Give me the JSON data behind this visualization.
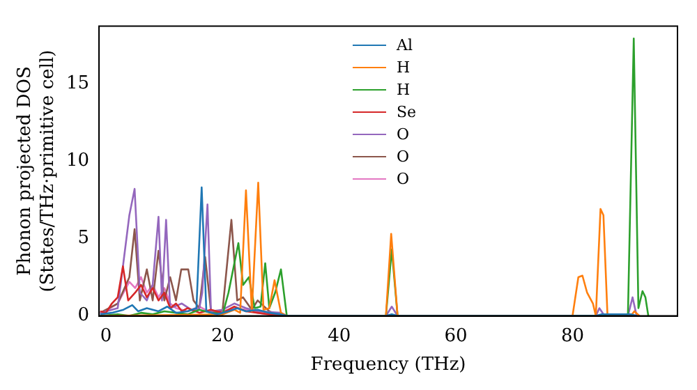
{
  "chart_data": {
    "type": "line",
    "xlabel": "Frequency (THz)",
    "ylabel": "Phonon projected DOS\n(States/THz·primitive cell)",
    "xlim": [
      -1.2,
      98
    ],
    "ylim": [
      0,
      18.7
    ],
    "xticks": [
      0,
      20,
      40,
      60,
      80
    ],
    "yticks": [
      0,
      5,
      10,
      15
    ],
    "grid": false,
    "legend": "top",
    "marker": "none",
    "line_style": "solid",
    "series": [
      {
        "name": "Al",
        "color": "#1f77b4",
        "x": [
          -1,
          1,
          3,
          4.5,
          5.5,
          7,
          9,
          10.5,
          12,
          14,
          15.5,
          16.4,
          17.2,
          19,
          21,
          22.5,
          24,
          26,
          28,
          30,
          31,
          48,
          49,
          50,
          84,
          85,
          90,
          91
        ],
        "values": [
          0.1,
          0.2,
          0.4,
          0.7,
          0.3,
          0.5,
          0.3,
          0.6,
          0.2,
          0.3,
          0.5,
          8.3,
          0.3,
          0.1,
          0.3,
          0.5,
          0.3,
          0.4,
          0.2,
          0.1,
          0,
          0,
          0.1,
          0,
          0,
          0.1,
          0.1,
          0
        ]
      },
      {
        "name": "H",
        "color": "#ff7f0e",
        "x": [
          -1,
          20,
          22,
          23,
          24,
          25,
          26.1,
          27,
          28,
          28.9,
          30,
          31,
          48,
          48.9,
          50,
          80,
          81,
          81.7,
          82.5,
          83.5,
          84,
          84.8,
          85.3,
          86,
          90,
          90.6,
          91.5
        ],
        "values": [
          0,
          0.1,
          0.4,
          0.2,
          8.1,
          0.3,
          8.6,
          0.4,
          0.5,
          2.3,
          0.2,
          0,
          0,
          5.3,
          0,
          0,
          2.5,
          2.6,
          1.5,
          0.8,
          0,
          6.9,
          6.5,
          0,
          0,
          0.3,
          0
        ]
      },
      {
        "name": "H",
        "color": "#2ca02c",
        "x": [
          -1,
          2,
          4,
          6,
          8,
          10,
          12,
          14,
          16,
          18,
          20,
          21,
          22.7,
          23.5,
          24.5,
          25.5,
          26.5,
          27.3,
          28,
          29,
          30,
          31,
          48,
          49,
          50,
          89.5,
          90.5,
          91.3,
          92,
          92.5,
          93
        ],
        "values": [
          0,
          0.1,
          0,
          0.2,
          0.1,
          0.3,
          0.2,
          0.1,
          0.4,
          0.2,
          0.1,
          1.5,
          4.7,
          2.0,
          2.5,
          0.5,
          0.6,
          3.4,
          0.5,
          1.5,
          3.0,
          0,
          0,
          4.3,
          0,
          0,
          17.9,
          0.5,
          1.6,
          1.2,
          0
        ]
      },
      {
        "name": "Se",
        "color": "#d62728",
        "x": [
          -1,
          0,
          1,
          2,
          2.9,
          3.8,
          5,
          6,
          7,
          8,
          9,
          10,
          11,
          12,
          13,
          14,
          16,
          18,
          20,
          22,
          24,
          26,
          30
        ],
        "values": [
          0.3,
          0.2,
          0.8,
          1.2,
          3.2,
          1.0,
          1.5,
          2.0,
          1.2,
          1.8,
          1.0,
          1.5,
          0.5,
          0.8,
          0.3,
          0.5,
          0.2,
          0.4,
          0.2,
          0.6,
          0.3,
          0.2,
          0
        ]
      },
      {
        "name": "O",
        "color": "#9467bd",
        "x": [
          -1,
          2,
          4,
          4.9,
          5.8,
          7,
          8,
          9,
          9.6,
          10.3,
          11,
          13,
          15,
          16,
          16.5,
          17.4,
          18,
          20,
          22,
          24,
          26,
          30,
          31,
          48,
          49,
          50,
          84,
          84.6,
          85.5,
          89.5,
          90.3,
          91
        ],
        "values": [
          0.2,
          0.5,
          6.5,
          8.2,
          1.5,
          1.0,
          2.0,
          6.4,
          1.0,
          6.2,
          0.5,
          0.8,
          0.3,
          0.5,
          1.5,
          7.2,
          0.3,
          0.4,
          0.8,
          0.5,
          0.3,
          0.2,
          0,
          0,
          0.6,
          0,
          0,
          0.5,
          0,
          0,
          1.2,
          0
        ]
      },
      {
        "name": "O",
        "color": "#8c564b",
        "x": [
          -1,
          2,
          4,
          4.9,
          5.8,
          7,
          8,
          9,
          10,
          11,
          12,
          12.9,
          14.1,
          15,
          16,
          17,
          18,
          19,
          20,
          21.5,
          22.5,
          23.5,
          25,
          26,
          28,
          30
        ],
        "values": [
          0.2,
          0.8,
          2.5,
          5.6,
          1.0,
          3.0,
          1.0,
          4.2,
          1.0,
          2.5,
          1.0,
          3.0,
          3.0,
          1.0,
          0.5,
          3.8,
          0.3,
          0.2,
          0.4,
          6.2,
          1.0,
          1.2,
          0.4,
          1.0,
          0.3,
          0
        ]
      },
      {
        "name": "O",
        "color": "#e377c2",
        "x": [
          -1,
          2,
          3,
          4,
          5,
          6,
          7,
          8,
          9,
          10,
          11,
          12,
          14,
          16,
          18,
          20,
          22,
          24,
          26,
          28,
          30
        ],
        "values": [
          0.1,
          0.8,
          1.5,
          2.2,
          1.8,
          2.5,
          1.5,
          2.0,
          1.2,
          1.8,
          0.8,
          0.5,
          0.3,
          0.6,
          0.2,
          0.3,
          0.5,
          0.4,
          0.2,
          0.1,
          0
        ]
      }
    ]
  }
}
